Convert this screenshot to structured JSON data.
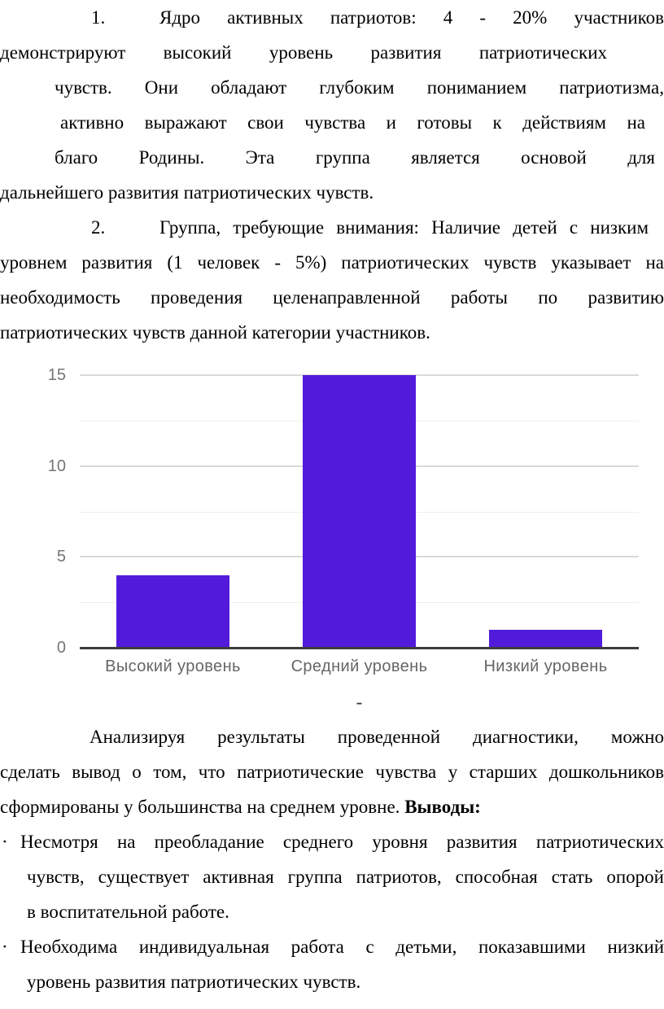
{
  "doc": {
    "p1_num": "1.",
    "p1_lines": [
      "Ядро активных патриотов: 4 - 20% участников",
      "демонстрируют высокий уровень развития патриотических",
      "чувств. Они обладают глубоким пониманием патриотизма,",
      "активно выражают свои чувства и готовы к действиям на",
      "благо Родины. Эта группа является основой для",
      "дальнейшего развития патриотических чувств."
    ],
    "p2_num": "2.",
    "p2_lines": [
      "Группа, требующие внимания: Наличие детей с низким",
      "уровнем развития (1 человек - 5%) патриотических чувств указывает на",
      "необходимость проведения целенаправленной работы по развитию",
      "патриотических чувств данной категории участников."
    ],
    "dash": "-",
    "p3_lines": [
      "Анализируя результаты проведенной диагностики, можно",
      "сделать вывод о том, что патриотические чувства у старших дошкольников",
      "сформированы у большинства на среднем уровне. "
    ],
    "p3_bold": "Выводы:",
    "bullet_marker": "·",
    "b1_lines": [
      "Несмотря на преобладание среднего уровня развития патриотических",
      "чувств, существует активная группа патриотов, способная стать опорой",
      "в воспитательной работе."
    ],
    "b2_lines": [
      "Необходима индивидуальная работа с детьми, показавшими низкий",
      "уровень развития патриотических чувств."
    ]
  },
  "chart_data": {
    "type": "bar",
    "categories": [
      "Высокий уровень",
      "Средний уровень",
      "Низкий уровень"
    ],
    "values": [
      4,
      15,
      1
    ],
    "title": "",
    "xlabel": "",
    "ylabel": "",
    "ylim": [
      0,
      15
    ],
    "yticks": [
      0,
      5,
      10,
      15
    ],
    "minor_gridlines": [
      2.5,
      7.5,
      12.5
    ],
    "grid": true,
    "legend": "none",
    "bar_color": "#521bdb",
    "axis_color": "#3d3d3d",
    "major_grid_color": "#d9d9d9",
    "minor_grid_color": "#eeeeee",
    "ytick_color": "#757575",
    "xtick_color": "#666666"
  }
}
